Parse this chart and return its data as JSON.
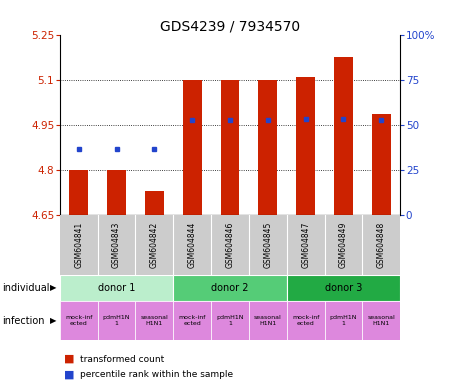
{
  "title": "GDS4239 / 7934570",
  "samples": [
    "GSM604841",
    "GSM604843",
    "GSM604842",
    "GSM604844",
    "GSM604846",
    "GSM604845",
    "GSM604847",
    "GSM604849",
    "GSM604848"
  ],
  "bar_values": [
    4.8,
    4.8,
    4.73,
    5.1,
    5.1,
    5.1,
    5.11,
    5.175,
    4.985
  ],
  "bar_base": 4.65,
  "blue_dot_values": [
    4.87,
    4.87,
    4.87,
    4.965,
    4.965,
    4.965,
    4.968,
    4.968,
    4.965
  ],
  "ylim_left": [
    4.65,
    5.25
  ],
  "ylim_right": [
    0,
    100
  ],
  "yticks_left": [
    4.65,
    4.8,
    4.95,
    5.1,
    5.25
  ],
  "yticks_right": [
    0,
    25,
    50,
    75,
    100
  ],
  "ytick_labels_left": [
    "4.65",
    "4.8",
    "4.95",
    "5.1",
    "5.25"
  ],
  "ytick_labels_right": [
    "0",
    "25",
    "50",
    "75",
    "100%"
  ],
  "bar_color": "#cc2200",
  "dot_color": "#2244cc",
  "donors": [
    {
      "label": "donor 1",
      "cols": [
        0,
        1,
        2
      ],
      "color": "#bbeecc"
    },
    {
      "label": "donor 2",
      "cols": [
        3,
        4,
        5
      ],
      "color": "#55cc77"
    },
    {
      "label": "donor 3",
      "cols": [
        6,
        7,
        8
      ],
      "color": "#22aa44"
    }
  ],
  "infection_texts": [
    "mock-inf\nected",
    "pdmH1N\n1",
    "seasonal\nH1N1",
    "mock-inf\nected",
    "pdmH1N\n1",
    "seasonal\nH1N1",
    "mock-inf\nected",
    "pdmH1N\n1",
    "seasonal\nH1N1"
  ],
  "infection_color": "#dd88dd",
  "sample_box_color": "#cccccc",
  "legend_items": [
    {
      "label": "transformed count",
      "color": "#cc2200"
    },
    {
      "label": "percentile rank within the sample",
      "color": "#2244cc"
    }
  ],
  "individual_label": "individual",
  "infection_label": "infection"
}
